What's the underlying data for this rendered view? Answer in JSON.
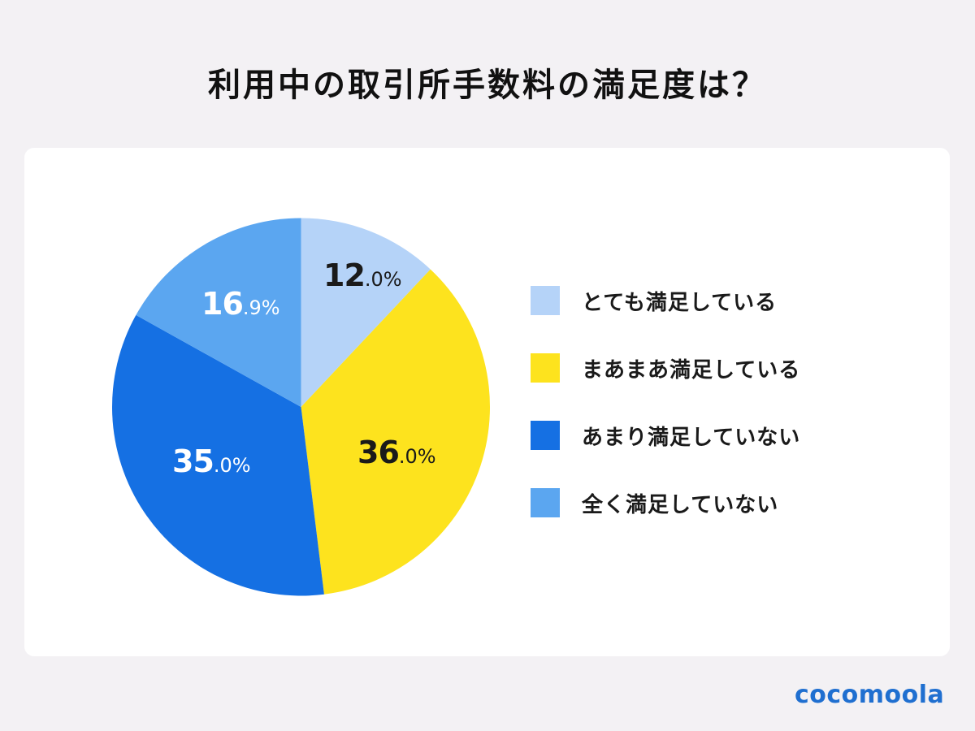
{
  "title": "利用中の取引所手数料の満足度は？",
  "brand": {
    "logo_text": "cocomoola",
    "logo_color": "#1f6fd0"
  },
  "chart_data": {
    "type": "pie",
    "title": "利用中の取引所手数料の満足度は？",
    "start_angle_deg": 0,
    "direction": "clockwise",
    "legend_position": "right",
    "categories": [
      "とても満足している",
      "まあまあ満足している",
      "あまり満足していない",
      "全く満足していない"
    ],
    "values": [
      12.0,
      36.0,
      35.0,
      16.9
    ],
    "value_labels": [
      {
        "int": "12",
        "dec": ".0%"
      },
      {
        "int": "36",
        "dec": ".0%"
      },
      {
        "int": "35",
        "dec": ".0%"
      },
      {
        "int": "16",
        "dec": ".9%"
      }
    ],
    "colors": [
      "#b5d3f8",
      "#fde31e",
      "#1570e3",
      "#5ba6f0"
    ],
    "label_colors": [
      "#1a1a1a",
      "#1a1a1a",
      "#ffffff",
      "#ffffff"
    ],
    "unit": "%"
  },
  "legend": {
    "items": [
      {
        "label": "とても満足している",
        "color": "#b5d3f8"
      },
      {
        "label": "まあまあ満足している",
        "color": "#fde31e"
      },
      {
        "label": "あまり満足していない",
        "color": "#1570e3"
      },
      {
        "label": "全く満足していない",
        "color": "#5ba6f0"
      }
    ]
  }
}
